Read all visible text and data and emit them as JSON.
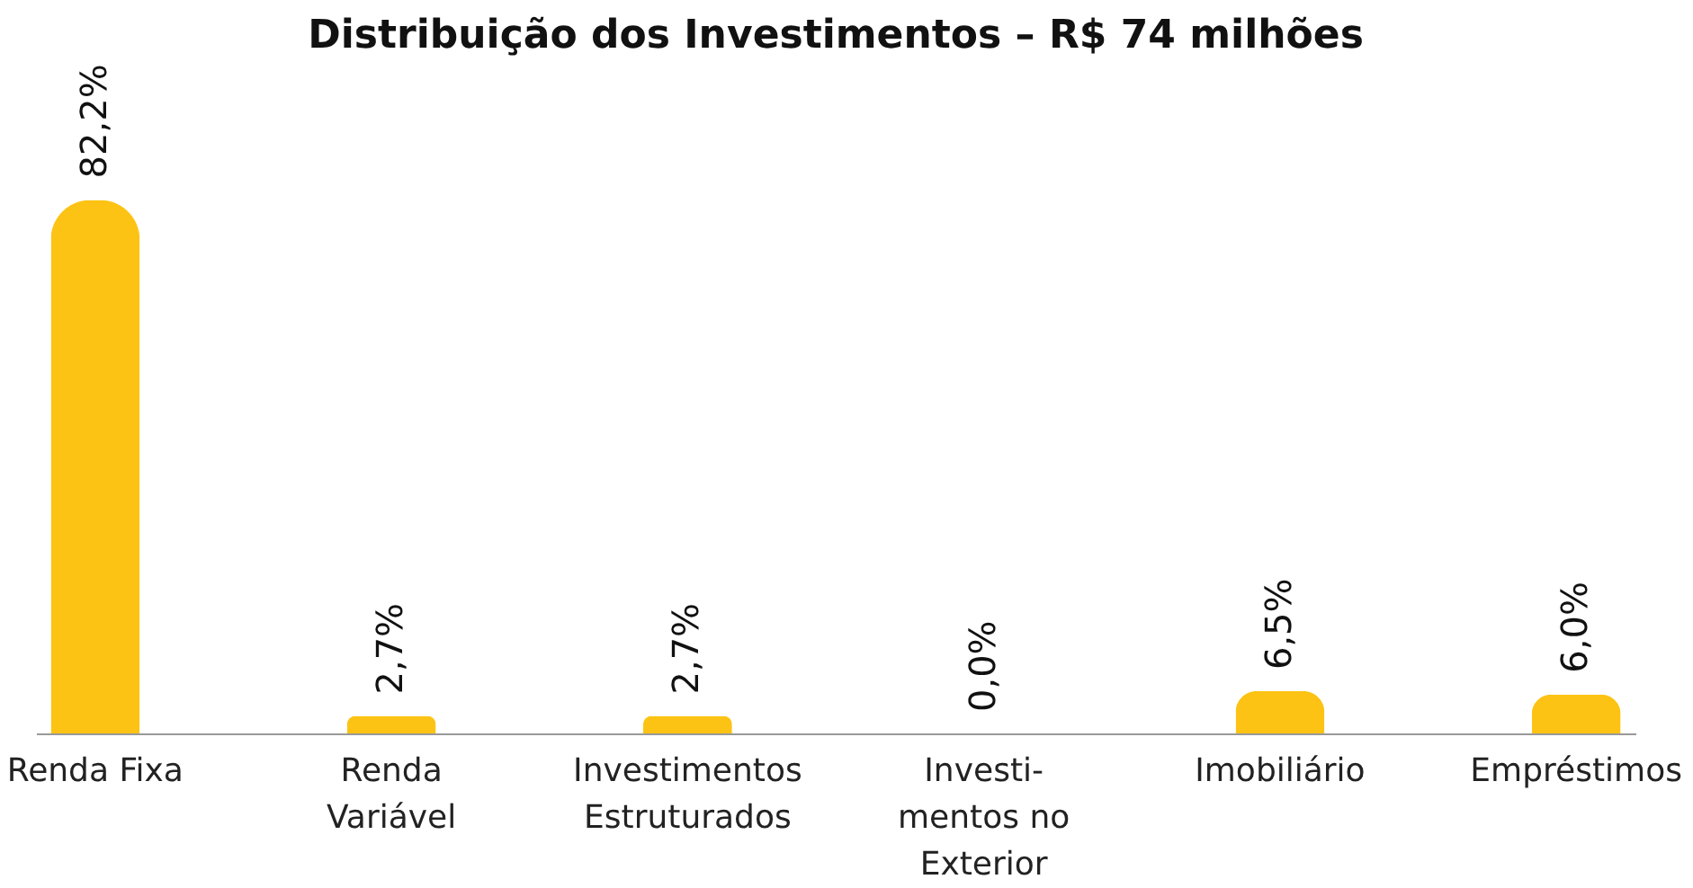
{
  "chart_data": {
    "type": "bar",
    "title": "Distribuição dos Investimentos – R$ 74 milhões",
    "categories": [
      "Renda Fixa",
      "Renda\nVariável",
      "Investimentos\nEstruturados",
      "Investi-\nmentos no\nExterior",
      "Imobiliário",
      "Empréstimos"
    ],
    "values": [
      82.2,
      2.7,
      2.7,
      0.0,
      6.5,
      6.0
    ],
    "value_labels": [
      "82,2%",
      "2,7%",
      "2,7%",
      "0,0%",
      "6,5%",
      "6,0%"
    ],
    "color": "#fdc314"
  }
}
